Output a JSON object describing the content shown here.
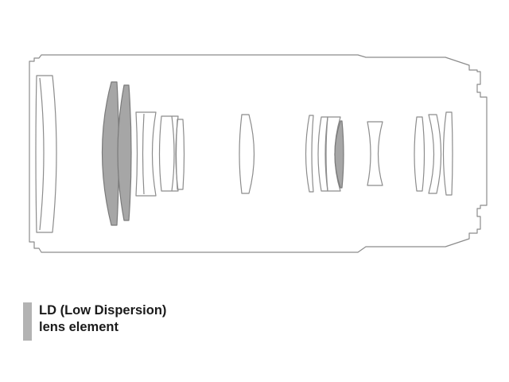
{
  "legend": {
    "line1": "LD (Low Dispersion)",
    "line2": "lens element",
    "swatch_color": "#b3b3b3"
  },
  "colors": {
    "outline": "#8c8c8c",
    "ld_fill": "#a6a6a6",
    "background": "#ffffff"
  }
}
